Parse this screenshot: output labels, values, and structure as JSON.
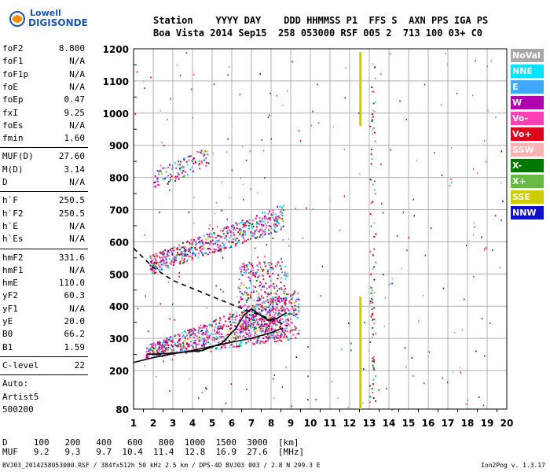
{
  "logo": {
    "line1": "Lowell",
    "line2": "DIGISONDE"
  },
  "header": {
    "row1": "Station    YYYY DAY    DDD HHMMSS P1  FFS S  AXN PPS IGA PS",
    "row2": "Boa Vista 2014 Sep15  258 053000 RSF 005 2  713 100 03+ C0"
  },
  "params_group1": [
    {
      "k": "foF2",
      "v": "8.800"
    },
    {
      "k": "foF1",
      "v": "N/A"
    },
    {
      "k": "foF1p",
      "v": "N/A"
    },
    {
      "k": "foE",
      "v": "N/A"
    },
    {
      "k": "foEp",
      "v": "0.47"
    },
    {
      "k": "fxI",
      "v": "9.25"
    },
    {
      "k": "foEs",
      "v": "N/A"
    },
    {
      "k": "fmin",
      "v": "1.60"
    }
  ],
  "params_group2": [
    {
      "k": "MUF(D)",
      "v": "27.60"
    },
    {
      "k": "M(D)",
      "v": "3.14"
    },
    {
      "k": "D",
      "v": "N/A"
    }
  ],
  "params_group3": [
    {
      "k": "h`F",
      "v": "250.5"
    },
    {
      "k": "h`F2",
      "v": "250.5"
    },
    {
      "k": "h`E",
      "v": "N/A"
    },
    {
      "k": "h`Es",
      "v": "N/A"
    }
  ],
  "params_group4": [
    {
      "k": "hmF2",
      "v": "331.6"
    },
    {
      "k": "hmF1",
      "v": "N/A"
    },
    {
      "k": "hmE",
      "v": "110.0"
    },
    {
      "k": "yF2",
      "v": "60.3"
    },
    {
      "k": "yF1",
      "v": "N/A"
    },
    {
      "k": "yE",
      "v": "20.0"
    },
    {
      "k": "B0",
      "v": "66.2"
    },
    {
      "k": "B1",
      "v": "1.59"
    }
  ],
  "params_group5": [
    {
      "k": "C-level",
      "v": "22"
    }
  ],
  "autoscale": {
    "line1": "Auto:",
    "line2": "Artist5",
    "line3": "500200"
  },
  "legend": [
    {
      "label": "NoVal",
      "color": "#a9a9a9"
    },
    {
      "label": "NNE",
      "color": "#00e5ff"
    },
    {
      "label": "E",
      "color": "#3fa9ff"
    },
    {
      "label": "W",
      "color": "#b000b0"
    },
    {
      "label": "Vo-",
      "color": "#ff3fb4"
    },
    {
      "label": "Vo+",
      "color": "#e0001c"
    },
    {
      "label": "SSW",
      "color": "#ffb0b0"
    },
    {
      "label": "X-",
      "color": "#007800"
    },
    {
      "label": "X+",
      "color": "#66bb44"
    },
    {
      "label": "SSE",
      "color": "#cccc00"
    },
    {
      "label": "NNW",
      "color": "#1010cc"
    }
  ],
  "footer": {
    "row1": "D     100   200   400   600   800  1000  1500  3000  [km]",
    "row2": "MUF   9.2   9.3   9.7  10.4  11.4  12.8  16.9  27.6  [MHz]",
    "file": "BVJ03_2014258053000.RSF / 384fx512h 50 kHz 2.5 km / DPS-4D BVJ03 003 / 2.8 N 299.3 E",
    "version": "Ion2Png v. 1.3.17"
  },
  "chart_data": {
    "type": "scatter",
    "title": "",
    "xlabel": "",
    "ylabel": "",
    "xlim": [
      1,
      20
    ],
    "ylim": [
      80,
      1200
    ],
    "x_ticks": [
      1,
      2,
      3,
      4,
      5,
      6,
      7,
      8,
      9,
      10,
      11,
      12,
      13,
      14,
      15,
      16,
      17,
      18,
      19,
      20
    ],
    "y_ticks": [
      80,
      200,
      300,
      400,
      500,
      600,
      700,
      800,
      900,
      1000,
      1100,
      1200
    ],
    "grid": true,
    "legend_position": "right",
    "series": [
      {
        "name": "X-",
        "kind": "line",
        "color": "#000000",
        "dash": "none",
        "x": [
          1.0,
          2.0,
          3.0,
          4.0,
          5.0,
          6.0,
          7.0,
          8.0,
          8.6
        ],
        "y": [
          225,
          240,
          252,
          262,
          275,
          288,
          300,
          318,
          332
        ]
      },
      {
        "name": "O-trace",
        "kind": "line",
        "color": "#000000",
        "dash": "none",
        "x": [
          1.7,
          3.0,
          4.5,
          5.5,
          6.2,
          6.6,
          7.0,
          7.5,
          7.9,
          8.3,
          8.8
        ],
        "y": [
          250,
          254,
          262,
          285,
          330,
          370,
          392,
          370,
          355,
          362,
          380
        ]
      },
      {
        "name": "profile",
        "kind": "line",
        "color": "#000000",
        "dash": "6,5",
        "x": [
          1.0,
          1.5,
          2.0,
          3.0,
          4.0,
          5.0,
          6.0,
          7.0,
          8.0,
          8.8
        ],
        "y": [
          580,
          550,
          520,
          480,
          455,
          430,
          405,
          382,
          360,
          340
        ]
      },
      {
        "name": "SSE",
        "kind": "line",
        "color": "#cccc00",
        "dash": "none",
        "width": 3,
        "x": [
          12.55,
          12.55
        ],
        "y": [
          80,
          430
        ]
      },
      {
        "name": "SSE2",
        "kind": "line",
        "color": "#cccc00",
        "dash": "none",
        "width": 3,
        "x": [
          12.55,
          12.55
        ],
        "y": [
          960,
          1190
        ]
      }
    ],
    "clusters": [
      {
        "name": "F1 trace",
        "x0": 1.6,
        "x1": 9.4,
        "ylo0": 240,
        "ylo1": 300,
        "yhi0": 280,
        "yhi1": 460,
        "n": 900
      },
      {
        "name": "F2 peak",
        "x0": 6.3,
        "x1": 8.8,
        "ylo0": 300,
        "ylo1": 300,
        "yhi0": 540,
        "yhi1": 540,
        "n": 420
      },
      {
        "name": "2F trace",
        "x0": 1.8,
        "x1": 8.6,
        "ylo0": 500,
        "ylo1": 640,
        "yhi0": 560,
        "yhi1": 720,
        "n": 560
      },
      {
        "name": "3F trace",
        "x0": 2.0,
        "x1": 4.8,
        "ylo0": 760,
        "ylo1": 840,
        "yhi0": 820,
        "yhi1": 900,
        "n": 120
      }
    ]
  }
}
